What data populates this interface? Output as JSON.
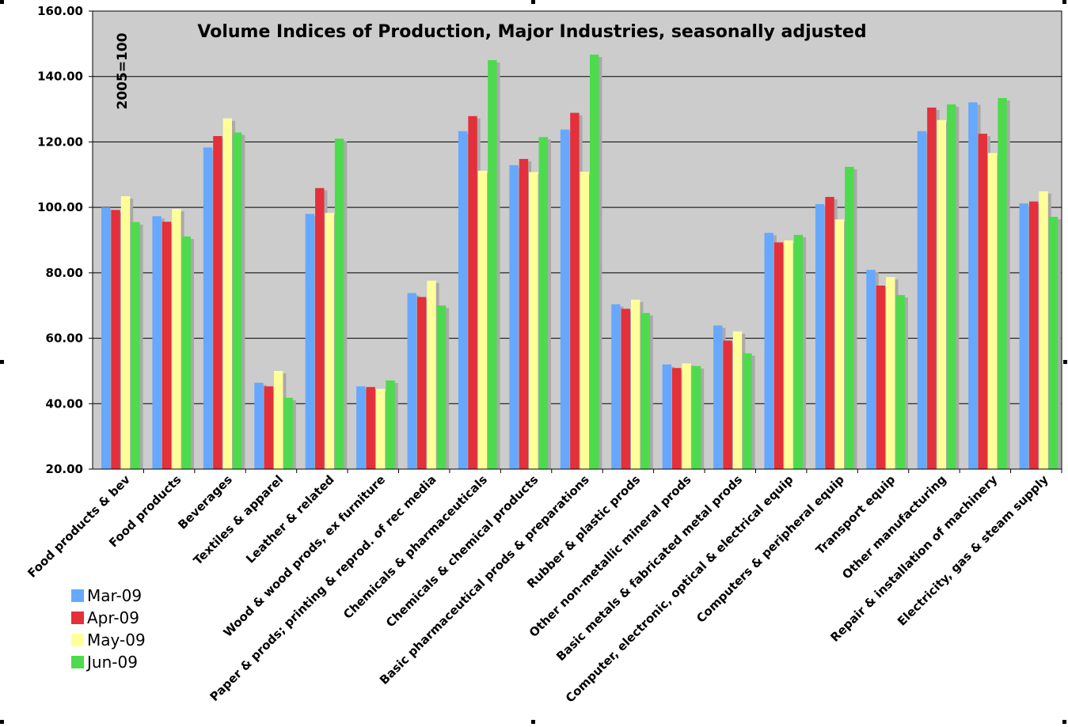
{
  "chart_data": {
    "type": "bar",
    "title": "Volume Indices of Production, Major Industries, seasonally adjusted",
    "ylabel": "2005=100",
    "xlabel": "",
    "ylim": [
      20,
      160
    ],
    "yticks": [
      "20.00",
      "40.00",
      "60.00",
      "80.00",
      "100.00",
      "120.00",
      "140.00",
      "160.00"
    ],
    "grid": true,
    "legend_position": "bottom-left",
    "categories": [
      "Food products & bev",
      "Food products",
      "Beverages",
      "Textiles & apparel",
      "Leather & related",
      "Wood & wood prods, ex furniture",
      "Paper & prods; printing & reprod. of rec media",
      "Chemicals & pharmaceuticals",
      "Chemicals & chemical products",
      "Basic pharmaceutical prods & preparations",
      "Rubber & plastic prods",
      "Other non-metallic mineral prods",
      "Basic metals & fabricated metal prods",
      "Computer, electronic, optical & electrical equip",
      "Computers & peripheral equip",
      "Transport equip",
      "Other manufacturing",
      "Repair & installation of machinery",
      "Electricity, gas & steam supply"
    ],
    "series": [
      {
        "name": "Mar-09",
        "color": "#66a8ff",
        "values": [
          100.0,
          97.3,
          118.3,
          46.4,
          98.0,
          45.3,
          73.8,
          123.3,
          112.9,
          123.8,
          70.4,
          52.0,
          63.9,
          92.2,
          101.0,
          80.9,
          123.3,
          132.1,
          101.2
        ]
      },
      {
        "name": "Apr-09",
        "color": "#e3303a",
        "values": [
          99.2,
          95.6,
          121.8,
          45.3,
          105.9,
          45.1,
          72.6,
          127.9,
          114.8,
          128.9,
          69.0,
          50.9,
          59.3,
          89.3,
          103.2,
          76.1,
          130.5,
          122.5,
          101.8
        ]
      },
      {
        "name": "May-09",
        "color": "#ffff99",
        "values": [
          103.4,
          99.5,
          127.2,
          50.0,
          98.3,
          44.5,
          77.6,
          111.2,
          110.8,
          110.9,
          71.8,
          52.3,
          62.1,
          89.9,
          96.3,
          78.7,
          126.7,
          116.6,
          104.9
        ]
      },
      {
        "name": "Jun-09",
        "color": "#4ddb4d",
        "values": [
          95.5,
          91.1,
          122.9,
          41.8,
          121.0,
          47.1,
          70.0,
          145.0,
          121.5,
          146.7,
          67.7,
          51.5,
          55.4,
          91.6,
          112.4,
          73.2,
          131.5,
          133.4,
          97.1
        ]
      }
    ]
  },
  "colors": {
    "plot_background": "#cccccc",
    "bar_shadow": "#a9a9a9",
    "gridline": "#000000"
  }
}
